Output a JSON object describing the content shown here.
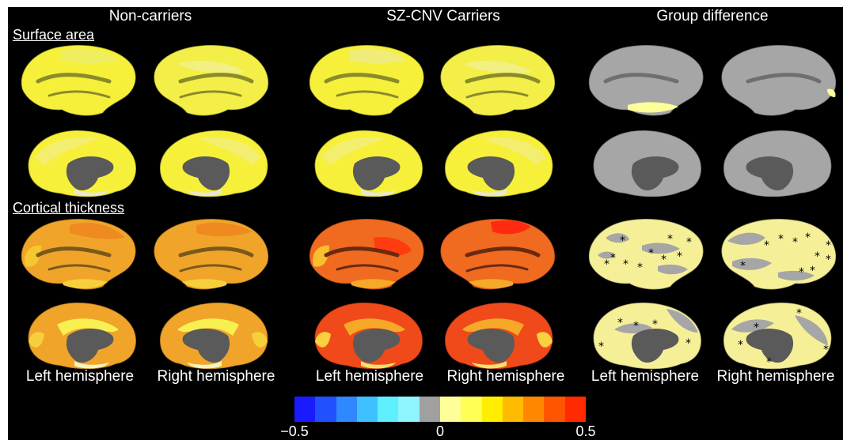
{
  "columns": [
    {
      "title": "Non-carriers"
    },
    {
      "title": "SZ-CNV Carriers"
    },
    {
      "title": "Group difference"
    }
  ],
  "sections": {
    "surface_area": "Surface area",
    "cortical_thickness": "Cortical thickness"
  },
  "hemispheres": {
    "left": "Left hemisphere",
    "right": "Right hemisphere"
  },
  "colorbar": {
    "min_label": "−0.5",
    "mid_label": "0",
    "max_label": "0.5",
    "range": [
      -0.5,
      0.5
    ],
    "colors": [
      "#1a1aff",
      "#2150ff",
      "#2f88ff",
      "#3fc0ff",
      "#5ef0ff",
      "#8ff5ff",
      "#a0a0a0",
      "#ffff99",
      "#ffff55",
      "#ffee00",
      "#ffbb00",
      "#ff8800",
      "#ff5500",
      "#ff2a00"
    ]
  },
  "colors": {
    "background": "#000000",
    "medial_wall": "#5a5a5a",
    "no_difference": "#a6a6a6"
  }
}
